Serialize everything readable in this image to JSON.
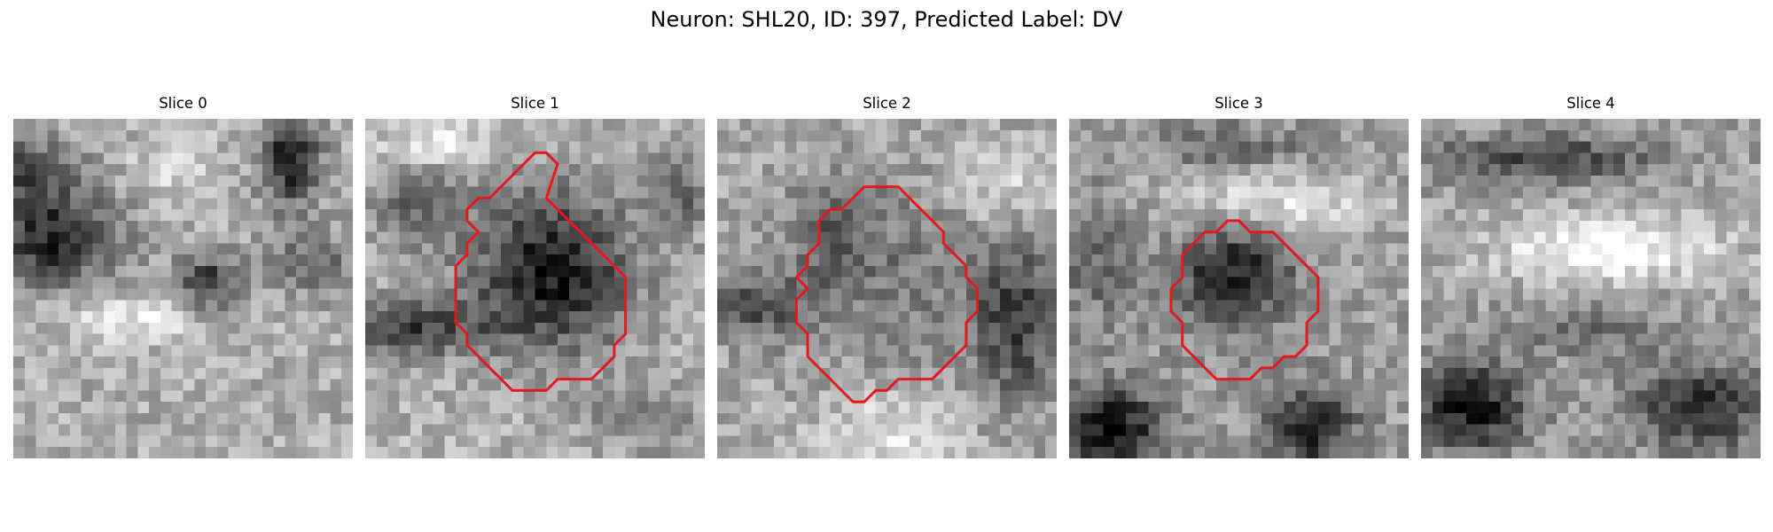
{
  "figure": {
    "title": "Neuron: SHL20, ID: 397, Predicted Label: DV"
  },
  "panels": [
    {
      "title": "Slice 0",
      "has_contour": false
    },
    {
      "title": "Slice 1",
      "has_contour": true
    },
    {
      "title": "Slice 2",
      "has_contour": true
    },
    {
      "title": "Slice 3",
      "has_contour": true
    },
    {
      "title": "Slice 4",
      "has_contour": false
    }
  ],
  "colors": {
    "contour": "#e31a1c",
    "background": "#ffffff",
    "colormap": "grayscale"
  }
}
